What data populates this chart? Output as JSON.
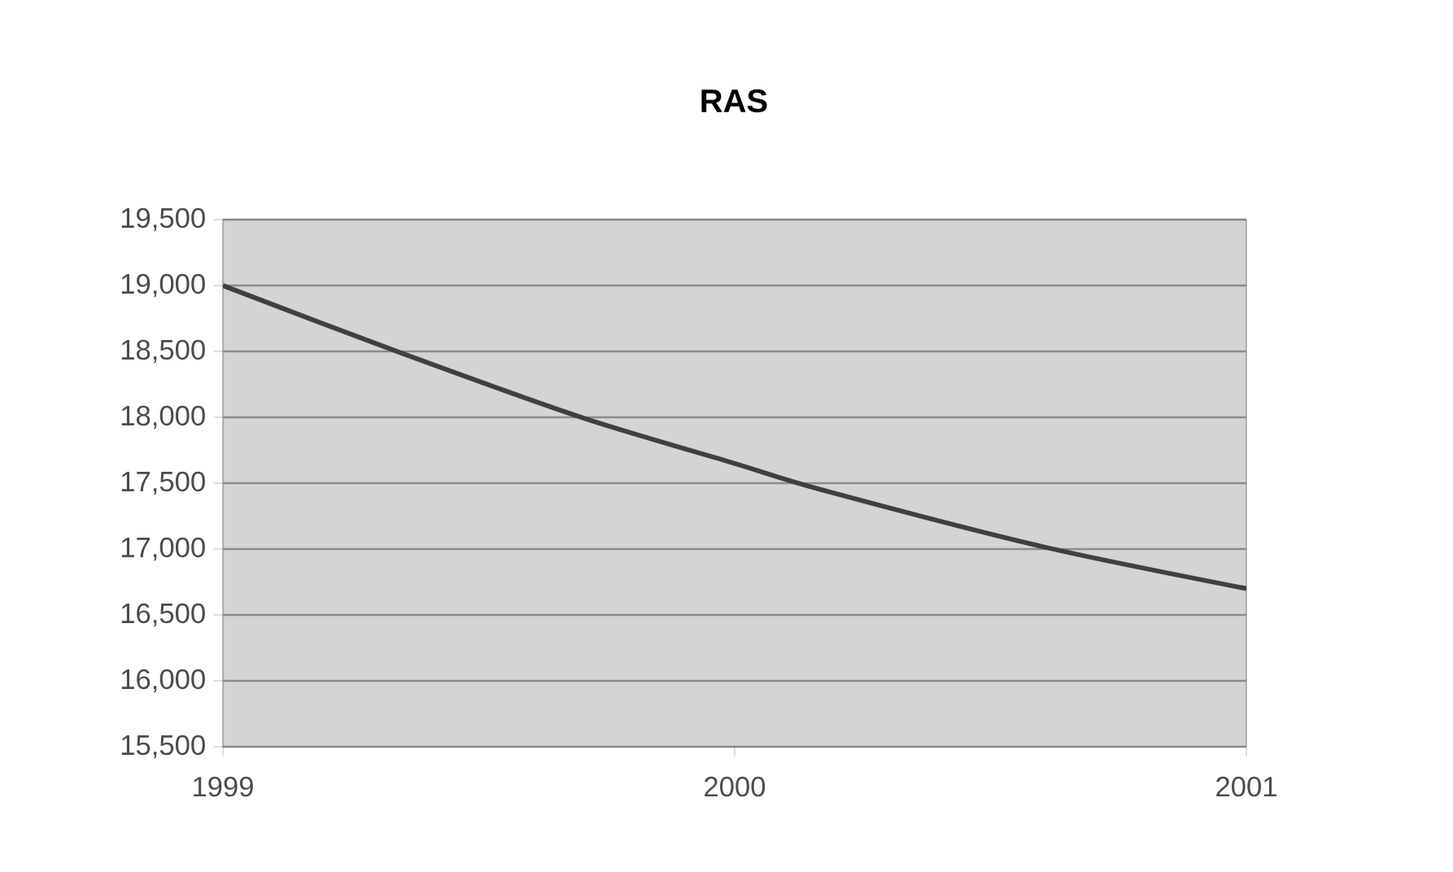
{
  "chart_data": {
    "type": "line",
    "title": "RAS",
    "x": [
      1999,
      1999.34,
      1999.7,
      2000,
      2000.17,
      2000.6,
      2001
    ],
    "series": [
      {
        "color": "#404040",
        "values": [
          19000,
          18500,
          18000,
          17650,
          17450,
          17020,
          16700
        ]
      }
    ],
    "xlim": [
      1999,
      2001
    ],
    "xticks": [
      1999,
      2000,
      2001
    ],
    "ylim": [
      15500,
      19500
    ],
    "yticks": [
      {
        "value": 15500,
        "label": "15,500"
      },
      {
        "value": 16000,
        "label": "16,000"
      },
      {
        "value": 16500,
        "label": "16,500"
      },
      {
        "value": 17000,
        "label": "17,000"
      },
      {
        "value": 17500,
        "label": "17,500"
      },
      {
        "value": 18000,
        "label": "18,000"
      },
      {
        "value": 18500,
        "label": "18,500"
      },
      {
        "value": 19000,
        "label": "19,000"
      },
      {
        "value": 19500,
        "label": "19,500"
      }
    ],
    "grid": "y",
    "marker": "none",
    "line_style": "solid"
  }
}
